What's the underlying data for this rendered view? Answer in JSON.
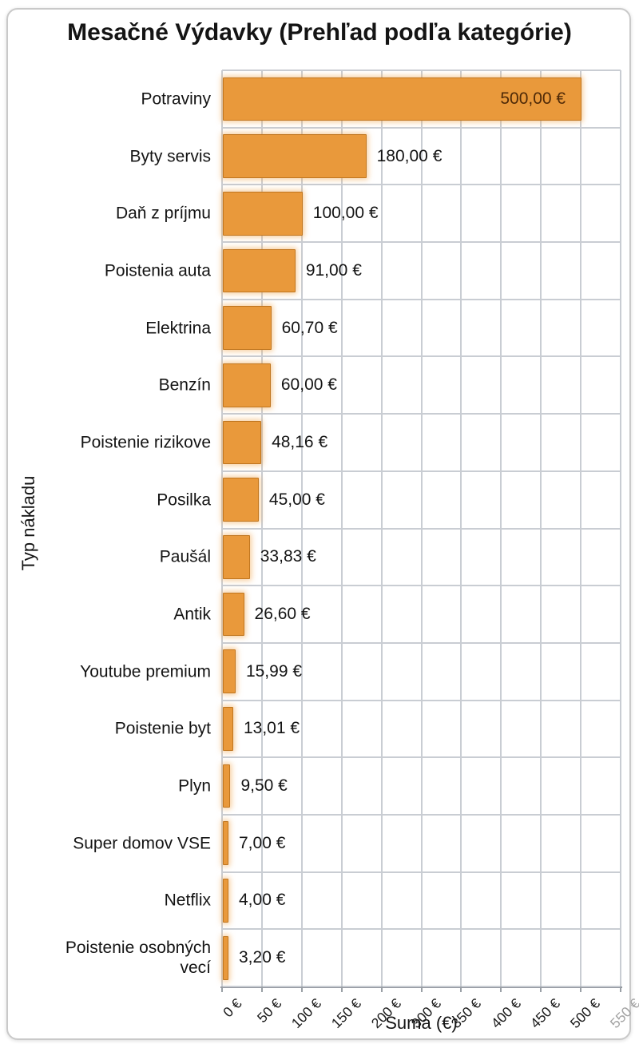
{
  "title": "Mesačné Výdavky (Prehľad podľa kategórie)",
  "axes": {
    "x_label": "Suma (€)",
    "y_label": "Typ nákladu",
    "x_tick_labels": [
      "0 €",
      "50 €",
      "100 €",
      "150 €",
      "200 €",
      "300 €",
      "350 €",
      "400 €",
      "450 €",
      "500 €",
      "550 €"
    ]
  },
  "colors": {
    "bar_fill": "#e9993b",
    "bar_border": "#c0761f",
    "bar_glow": "rgba(243,167,80,0.55)",
    "grid": "#c9cdd3",
    "axis_spine": "#8f949c",
    "text": "#141414",
    "value_label_inside_bar": "#4f2a08",
    "faded_tick": "#a3a3a3"
  },
  "chart_data": {
    "type": "bar",
    "orientation": "horizontal",
    "title": "Mesačné Výdavky (Prehľad podľa kategórie)",
    "xlabel": "Suma (€)",
    "ylabel": "Typ nákladu",
    "xlim": [
      0,
      550
    ],
    "grid": true,
    "legend": "none",
    "x_ticks_shown": [
      "0 €",
      "50 €",
      "100 €",
      "150 €",
      "200 €",
      "300 €",
      "350 €",
      "400 €",
      "450 €",
      "500 €",
      "550 €"
    ],
    "tick_anomaly": "250 € tick label is skipped; 550 € label rendered faded grey",
    "categories": [
      "Potraviny",
      "Byty servis",
      "Daň z príjmu",
      "Poistenia auta",
      "Elektrina",
      "Benzín",
      "Poistenie rizikove",
      "Posilka",
      "Paušál",
      "Antik",
      "Youtube premium",
      "Poistenie byt",
      "Plyn",
      "Super domov VSE",
      "Netflix",
      "Poistenie osobných vecí"
    ],
    "values": [
      500,
      180,
      100,
      91,
      60.7,
      60,
      48.16,
      45,
      33.83,
      26.6,
      15.99,
      13.01,
      9.5,
      7,
      4,
      3.2
    ],
    "value_labels": [
      "500,00 €",
      "180,00 €",
      "100,00 €",
      "91,00 €",
      "60,70 €",
      "60,00 €",
      "48,16 €",
      "45,00 €",
      "33,83 €",
      "26,60 €",
      "15,99 €",
      "13,01 €",
      "9,50 €",
      "7,00 €",
      "4,00 €",
      "3,20 €"
    ]
  }
}
